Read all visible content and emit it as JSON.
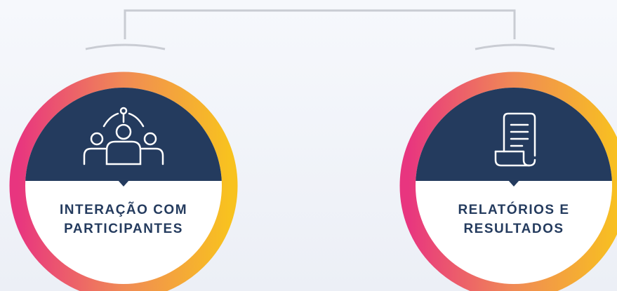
{
  "nodes": [
    {
      "label": [
        "INTERAÇÃO COM",
        "PARTICIPANTES"
      ]
    },
    {
      "label": [
        "RELATÓRIOS E",
        "RESULTADOS"
      ]
    }
  ]
}
